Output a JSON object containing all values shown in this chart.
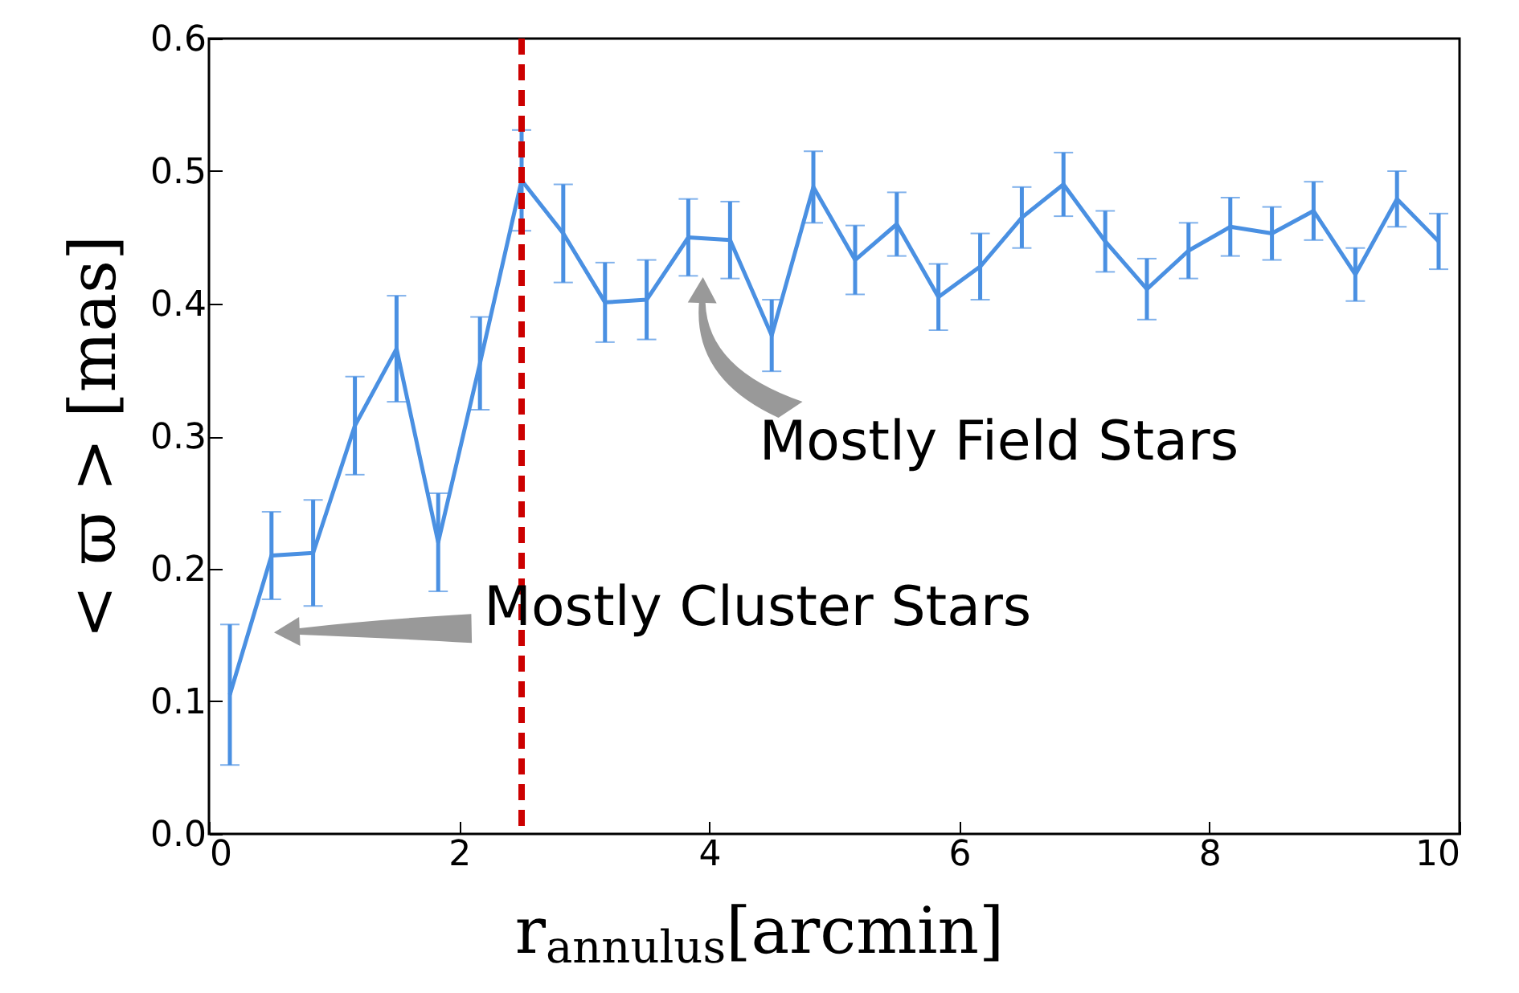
{
  "chart_data": {
    "type": "line",
    "xlabel": "r$_{annulus}$[arcmin]",
    "ylabel": "< ϖ > [mas]",
    "x": [
      0.167,
      0.5,
      0.833,
      1.167,
      1.5,
      1.833,
      2.167,
      2.5,
      2.833,
      3.167,
      3.5,
      3.833,
      4.167,
      4.5,
      4.833,
      5.167,
      5.5,
      5.833,
      6.167,
      6.5,
      6.833,
      7.167,
      7.5,
      7.833,
      8.167,
      8.5,
      8.833,
      9.167,
      9.5,
      9.833
    ],
    "series": [
      {
        "color": "#4a90e2",
        "values": [
          0.105,
          0.21,
          0.212,
          0.308,
          0.366,
          0.22,
          0.355,
          0.493,
          0.453,
          0.401,
          0.403,
          0.45,
          0.448,
          0.376,
          0.488,
          0.433,
          0.46,
          0.405,
          0.428,
          0.465,
          0.49,
          0.447,
          0.411,
          0.44,
          0.458,
          0.453,
          0.47,
          0.422,
          0.479,
          0.447
        ],
        "errors": [
          0.053,
          0.033,
          0.04,
          0.037,
          0.04,
          0.037,
          0.035,
          0.038,
          0.037,
          0.03,
          0.03,
          0.029,
          0.029,
          0.027,
          0.027,
          0.026,
          0.024,
          0.025,
          0.025,
          0.023,
          0.024,
          0.023,
          0.023,
          0.021,
          0.022,
          0.02,
          0.022,
          0.02,
          0.021,
          0.021
        ]
      }
    ],
    "xlim": [
      0,
      10
    ],
    "xticks": [
      0,
      2,
      4,
      6,
      8,
      10
    ],
    "ylim": [
      0,
      0.6
    ],
    "yticks": [
      {
        "value": 0,
        "label": "0.0"
      },
      {
        "value": 0.1,
        "label": "0.1"
      },
      {
        "value": 0.2,
        "label": "0.2"
      },
      {
        "value": 0.3,
        "label": "0.3"
      },
      {
        "value": 0.4,
        "label": "0.4"
      },
      {
        "value": 0.5,
        "label": "0.5"
      },
      {
        "value": 0.6,
        "label": "0.6"
      }
    ],
    "ref_lines": [
      {
        "axis": "x",
        "value": 2.5,
        "color": "#cc0000",
        "line_style": "dashed"
      }
    ],
    "annotations": [
      "Mostly Cluster Stars",
      "Mostly Field Stars"
    ],
    "grid": false,
    "marker": "none",
    "line_style": "solid"
  }
}
